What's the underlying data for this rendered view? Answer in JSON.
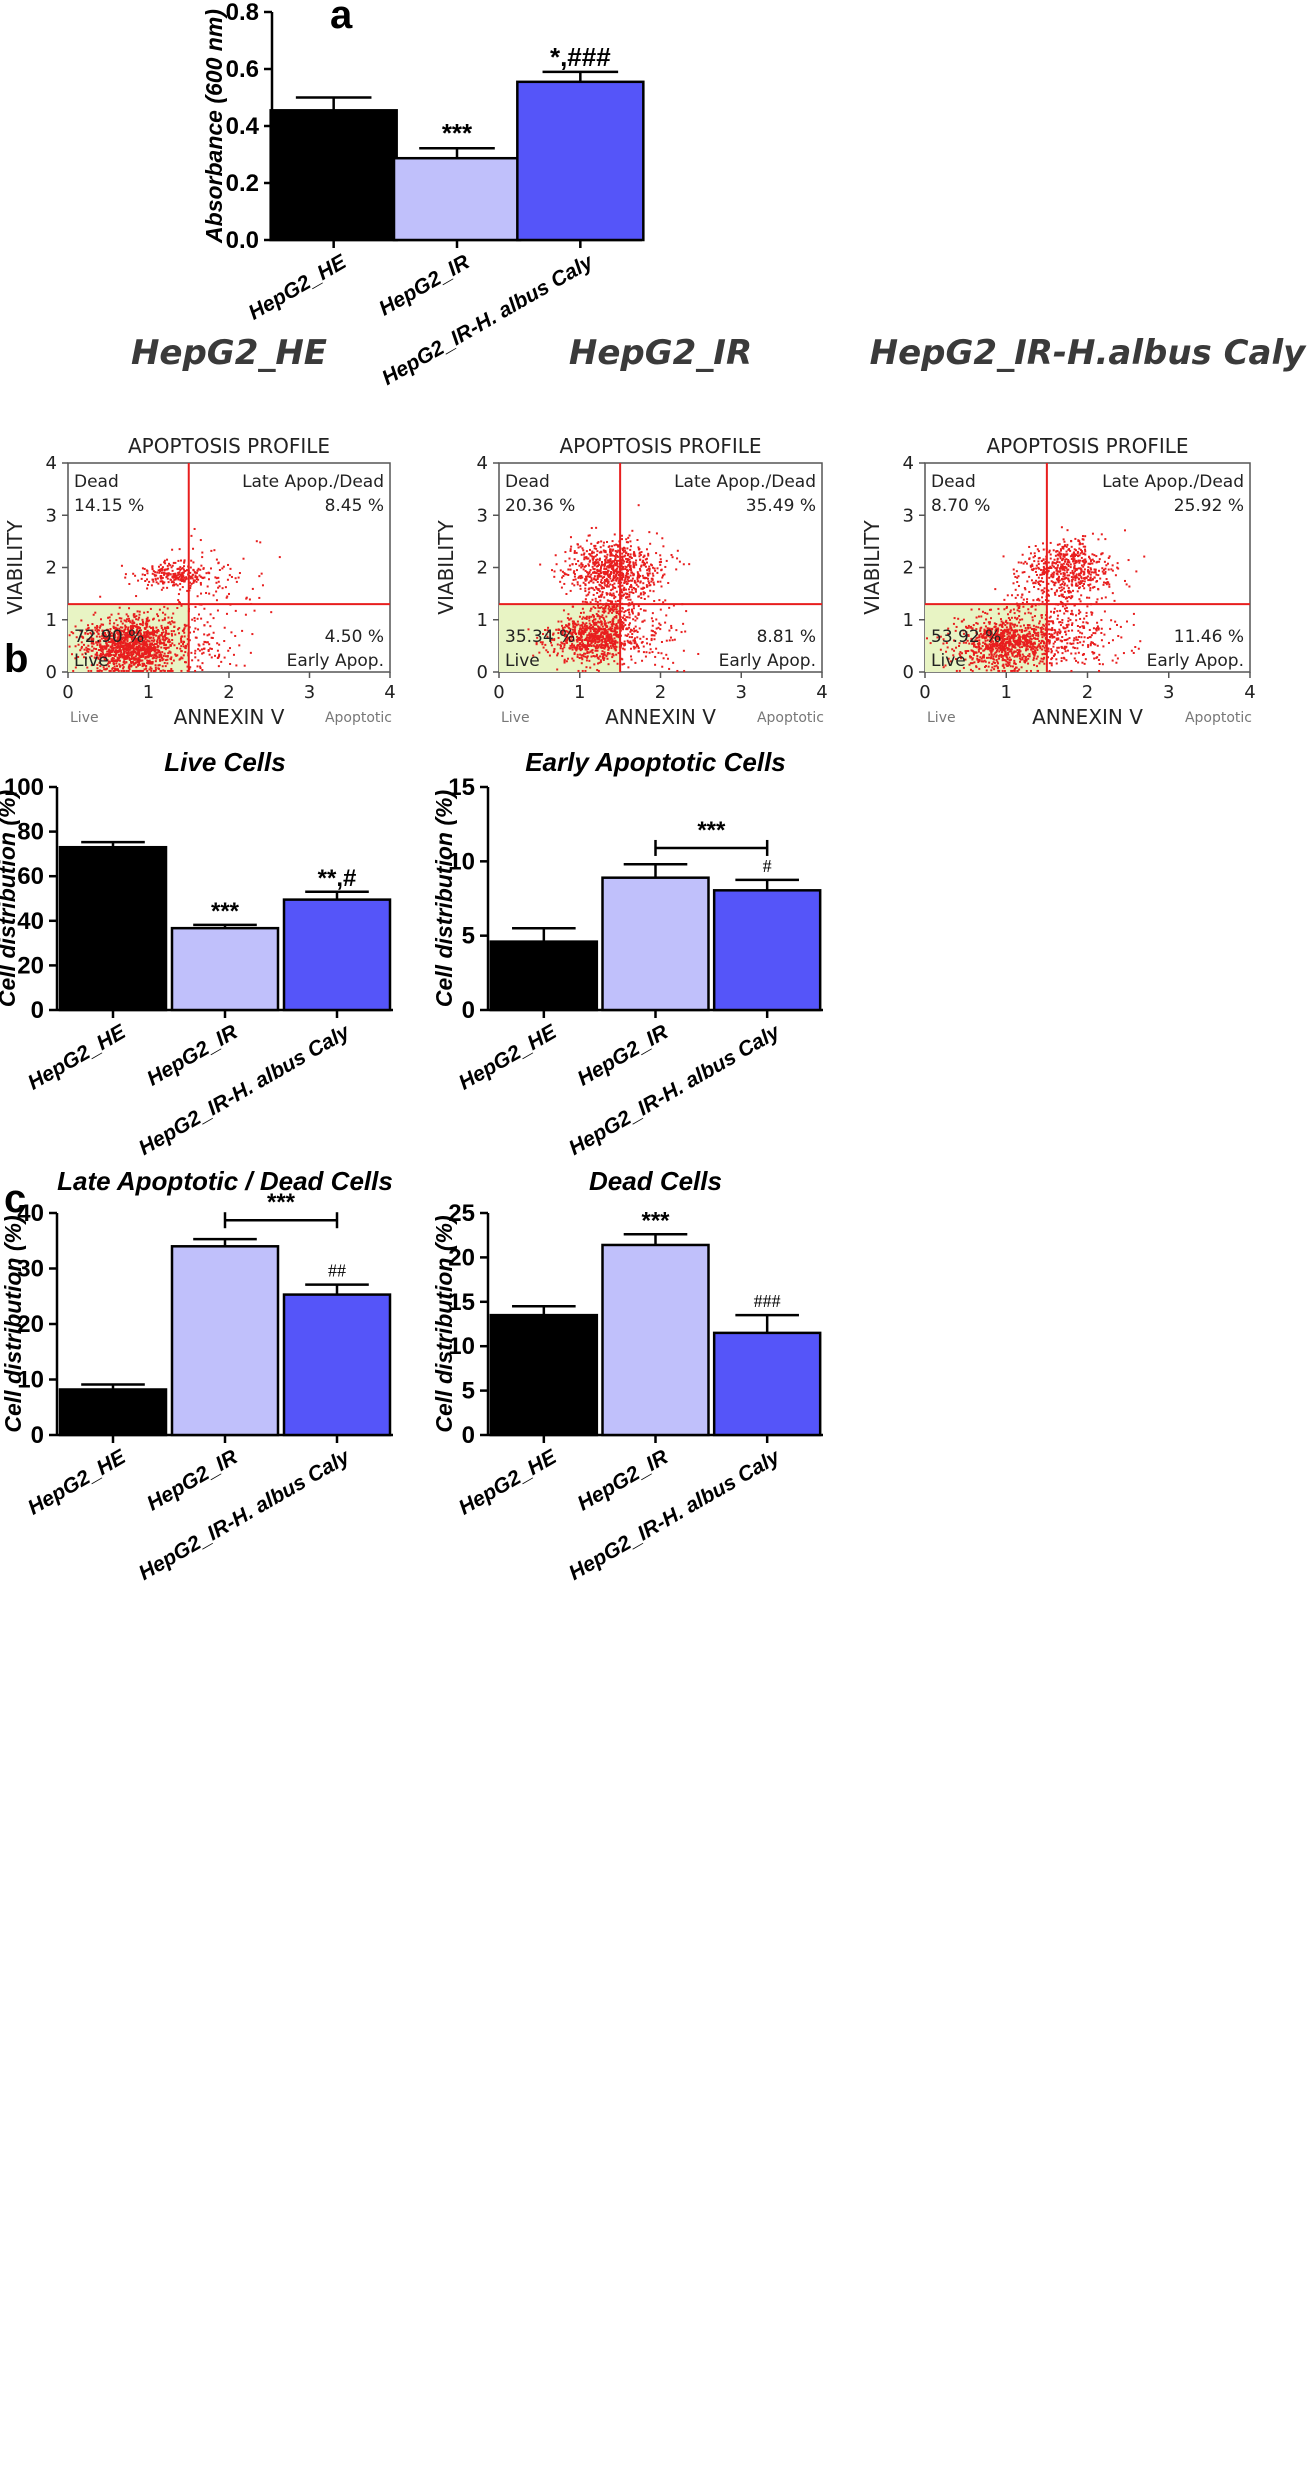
{
  "panel_labels": {
    "a": "a",
    "b": "b",
    "c": "c"
  },
  "colors": {
    "he": "#000000",
    "ir": "#c0c0fb",
    "caly": "#5555f9",
    "flow_red": "#e81e1e",
    "flow_live_fill": "#e8f4c4"
  },
  "chart_data": [
    {
      "id": "abs",
      "type": "bar",
      "title": "",
      "ylabel": "Absorbance (600 nm)",
      "ylim": [
        0,
        0.8
      ],
      "yticks": [
        0.0,
        0.2,
        0.4,
        0.6,
        0.8
      ],
      "ytick_labels": [
        "0.0",
        "0.2",
        "0.4",
        "0.6",
        "0.8"
      ],
      "categories": [
        "HepG2_HE",
        "HepG2_IR",
        "HepG2_IR-H. albus Caly"
      ],
      "values": [
        0.455,
        0.287,
        0.555
      ],
      "errors": [
        0.045,
        0.035,
        0.035
      ],
      "annotations": [
        "",
        "***",
        "*,###"
      ]
    },
    {
      "id": "live",
      "type": "bar",
      "title": "Live Cells",
      "ylabel": "Cell distribution (%)",
      "ylim": [
        0,
        100
      ],
      "yticks": [
        0,
        20,
        40,
        60,
        80,
        100
      ],
      "ytick_labels": [
        "0",
        "20",
        "40",
        "60",
        "80",
        "100"
      ],
      "categories": [
        "HepG2_HE",
        "HepG2_IR",
        "HepG2_IR-H. albus Caly"
      ],
      "values": [
        73,
        36.7,
        49.5
      ],
      "errors": [
        2.3,
        1.5,
        3.5
      ],
      "annotations": [
        "",
        "***",
        "**,#"
      ]
    },
    {
      "id": "early",
      "type": "bar",
      "title": "Early Apoptotic Cells",
      "ylabel": "Cell distribution (%)",
      "ylim": [
        0,
        15
      ],
      "yticks": [
        0,
        5,
        10,
        15
      ],
      "ytick_labels": [
        "0",
        "5",
        "10",
        "15"
      ],
      "categories": [
        "HepG2_HE",
        "HepG2_IR",
        "HepG2_IR-H. albus Caly"
      ],
      "values": [
        4.6,
        8.9,
        8.05
      ],
      "errors": [
        0.9,
        0.9,
        0.7
      ],
      "annotations": [
        "",
        "",
        "#"
      ],
      "bracket": {
        "from": 1,
        "to": 2,
        "label": "***",
        "y": 10.9
      }
    },
    {
      "id": "late",
      "type": "bar",
      "title": "Late Apoptotic / Dead Cells",
      "ylabel": "Cell distribution (%)",
      "ylim": [
        0,
        40
      ],
      "yticks": [
        0,
        10,
        20,
        30,
        40
      ],
      "ytick_labels": [
        "0",
        "10",
        "20",
        "30",
        "40"
      ],
      "categories": [
        "HepG2_HE",
        "HepG2_IR",
        "HepG2_IR-H. albus Caly"
      ],
      "values": [
        8.2,
        34,
        25.3
      ],
      "errors": [
        0.9,
        1.3,
        1.8
      ],
      "annotations": [
        "",
        "",
        "##"
      ],
      "bracket": {
        "from": 1,
        "to": 2,
        "label": "***",
        "y": 38.7
      }
    },
    {
      "id": "dead",
      "type": "bar",
      "title": "Dead Cells",
      "ylabel": "Cell distribution (%)",
      "ylim": [
        0,
        25
      ],
      "yticks": [
        0,
        5,
        10,
        15,
        20,
        25
      ],
      "ytick_labels": [
        "0",
        "5",
        "10",
        "15",
        "20",
        "25"
      ],
      "categories": [
        "HepG2_HE",
        "HepG2_IR",
        "HepG2_IR-H. albus Caly"
      ],
      "values": [
        13.5,
        21.4,
        11.5
      ],
      "errors": [
        1.0,
        1.2,
        2.0
      ],
      "annotations": [
        "",
        "***",
        "###"
      ]
    },
    {
      "id": "flow_he",
      "type": "scatter",
      "figure_title": "HepG2_HE",
      "title": "APOPTOSIS PROFILE",
      "xlabel": "ANNEXIN V",
      "ylabel": "VIABILITY",
      "xlim": [
        0,
        4
      ],
      "ylim": [
        0,
        4
      ],
      "xticks": [
        "0",
        "1",
        "2",
        "3",
        "4"
      ],
      "yticks": [
        "0",
        "1",
        "2",
        "3",
        "4"
      ],
      "gate_x": 1.5,
      "gate_y": 1.3,
      "corner_left": "Live",
      "corner_right": "Apoptotic",
      "quadrants": {
        "dead": {
          "label": "Dead",
          "value": "14.15 %"
        },
        "late": {
          "label": "Late Apop./Dead",
          "value": "8.45 %"
        },
        "live": {
          "label": "Live",
          "value": "72.90 %"
        },
        "early": {
          "label": "Early Apop.",
          "value": "4.50 %"
        }
      },
      "clusters": [
        {
          "cx": 0.8,
          "cy": 0.5,
          "sx": 0.28,
          "sy": 0.26,
          "n": 1300
        },
        {
          "cx": 1.35,
          "cy": 1.85,
          "sx": 0.22,
          "sy": 0.12,
          "n": 230
        },
        {
          "cx": 1.7,
          "cy": 1.55,
          "sx": 0.35,
          "sy": 0.5,
          "n": 120
        },
        {
          "cx": 1.7,
          "cy": 0.5,
          "sx": 0.25,
          "sy": 0.3,
          "n": 80
        }
      ]
    },
    {
      "id": "flow_ir",
      "type": "scatter",
      "figure_title": "HepG2_IR",
      "title": "APOPTOSIS PROFILE",
      "xlabel": "ANNEXIN V",
      "ylabel": "VIABILITY",
      "xlim": [
        0,
        4
      ],
      "ylim": [
        0,
        4
      ],
      "xticks": [
        "0",
        "1",
        "2",
        "3",
        "4"
      ],
      "yticks": [
        "0",
        "1",
        "2",
        "3",
        "4"
      ],
      "gate_x": 1.5,
      "gate_y": 1.3,
      "corner_left": "Live",
      "corner_right": "Apoptotic",
      "quadrants": {
        "dead": {
          "label": "Dead",
          "value": "20.36 %"
        },
        "late": {
          "label": "Late Apop./Dead",
          "value": "35.49 %"
        },
        "live": {
          "label": "Live",
          "value": "35.34 %"
        },
        "early": {
          "label": "Early Apop.",
          "value": "8.81 %"
        }
      },
      "clusters": [
        {
          "cx": 1.1,
          "cy": 0.65,
          "sx": 0.25,
          "sy": 0.22,
          "n": 650
        },
        {
          "cx": 1.45,
          "cy": 1.95,
          "sx": 0.3,
          "sy": 0.28,
          "n": 700
        },
        {
          "cx": 1.4,
          "cy": 1.2,
          "sx": 0.2,
          "sy": 0.45,
          "n": 300
        },
        {
          "cx": 1.8,
          "cy": 0.7,
          "sx": 0.3,
          "sy": 0.3,
          "n": 120
        }
      ]
    },
    {
      "id": "flow_caly",
      "type": "scatter",
      "figure_title": "HepG2_IR-H.albus Caly",
      "title": "APOPTOSIS PROFILE",
      "xlabel": "ANNEXIN V",
      "ylabel": "VIABILITY",
      "xlim": [
        0,
        4
      ],
      "ylim": [
        0,
        4
      ],
      "xticks": [
        "0",
        "1",
        "2",
        "3",
        "4"
      ],
      "yticks": [
        "0",
        "1",
        "2",
        "3",
        "4"
      ],
      "gate_x": 1.5,
      "gate_y": 1.3,
      "corner_left": "Live",
      "corner_right": "Apoptotic",
      "quadrants": {
        "dead": {
          "label": "Dead",
          "value": "8.70 %"
        },
        "late": {
          "label": "Late Apop./Dead",
          "value": "25.92 %"
        },
        "live": {
          "label": "Live",
          "value": "53.92 %"
        },
        "early": {
          "label": "Early Apop.",
          "value": "11.46 %"
        }
      },
      "clusters": [
        {
          "cx": 1.0,
          "cy": 0.55,
          "sx": 0.3,
          "sy": 0.25,
          "n": 900
        },
        {
          "cx": 1.75,
          "cy": 2.0,
          "sx": 0.28,
          "sy": 0.25,
          "n": 500
        },
        {
          "cx": 1.55,
          "cy": 1.2,
          "sx": 0.3,
          "sy": 0.45,
          "n": 250
        },
        {
          "cx": 1.9,
          "cy": 0.6,
          "sx": 0.3,
          "sy": 0.28,
          "n": 150
        }
      ]
    }
  ]
}
